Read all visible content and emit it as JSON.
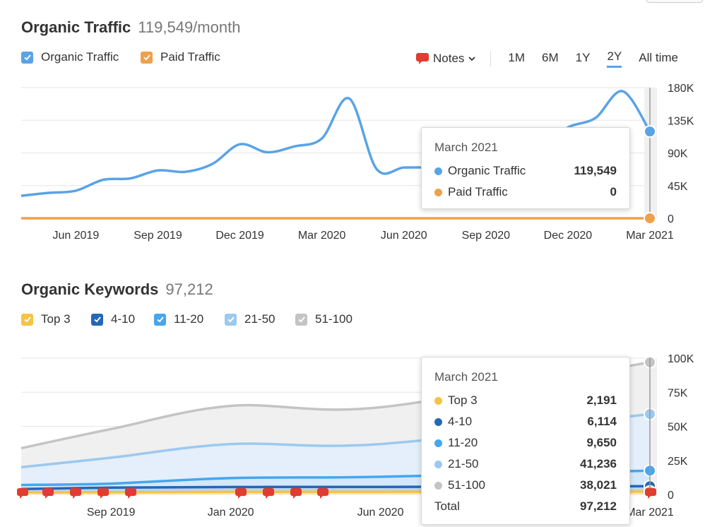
{
  "traffic": {
    "title": "Organic Traffic",
    "value": "119,549/month",
    "legend": [
      {
        "label": "Organic Traffic",
        "color": "#5aa3e6"
      },
      {
        "label": "Paid Traffic",
        "color": "#f0a04b"
      }
    ],
    "toolbar": {
      "notes_label": "Notes",
      "ranges": [
        "1M",
        "6M",
        "1Y",
        "2Y",
        "All time"
      ],
      "active_range": "2Y"
    },
    "tooltip": {
      "date": "March 2021",
      "rows": [
        {
          "label": "Organic Traffic",
          "value": "119,549",
          "color": "#5aa3e6"
        },
        {
          "label": "Paid Traffic",
          "value": "0",
          "color": "#f0a04b"
        }
      ]
    }
  },
  "keywords": {
    "title": "Organic Keywords",
    "value": "97,212",
    "legend": [
      {
        "label": "Top 3",
        "color": "#f5c443"
      },
      {
        "label": "4-10",
        "color": "#2467b8"
      },
      {
        "label": "11-20",
        "color": "#46a6ee"
      },
      {
        "label": "21-50",
        "color": "#9cc9ef"
      },
      {
        "label": "51-100",
        "color": "#c4c4c4"
      }
    ],
    "tooltip": {
      "date": "March 2021",
      "rows": [
        {
          "label": "Top 3",
          "value": "2,191",
          "color": "#f5c443"
        },
        {
          "label": "4-10",
          "value": "6,114",
          "color": "#2467b8"
        },
        {
          "label": "11-20",
          "value": "9,650",
          "color": "#46a6ee"
        },
        {
          "label": "21-50",
          "value": "41,236",
          "color": "#9cc9ef"
        },
        {
          "label": "51-100",
          "value": "38,021",
          "color": "#c4c4c4"
        }
      ],
      "total_label": "Total",
      "total_value": "97,212"
    }
  },
  "chart_data": [
    {
      "type": "line",
      "ylim": [
        0,
        180000
      ],
      "yticks": [
        "180K",
        "135K",
        "90K",
        "45K",
        "0"
      ],
      "xticks": [
        "Jun 2019",
        "Sep 2019",
        "Dec 2019",
        "Mar 2020",
        "Jun 2020",
        "Sep 2020",
        "Dec 2020",
        "Mar 2021"
      ],
      "grid": true,
      "series": [
        {
          "name": "Organic Traffic",
          "color": "#5aa3e6",
          "x": [
            "Apr 2019",
            "May 2019",
            "Jun 2019",
            "Jul 2019",
            "Aug 2019",
            "Sep 2019",
            "Oct 2019",
            "Nov 2019",
            "Dec 2019",
            "Jan 2020",
            "Feb 2020",
            "Mar 2020",
            "Apr 2020",
            "May 2020",
            "Jun 2020",
            "Jul 2020",
            "Aug 2020",
            "Sep 2020",
            "Oct 2020",
            "Nov 2020",
            "Dec 2020",
            "Jan 2021",
            "Feb 2021",
            "Mar 2021"
          ],
          "values": [
            31000,
            35000,
            38000,
            53000,
            55000,
            66000,
            64000,
            75000,
            102000,
            91000,
            99000,
            110000,
            165000,
            68000,
            70000,
            70000,
            70000,
            70000,
            72000,
            95000,
            125000,
            138000,
            175000,
            119549
          ]
        },
        {
          "name": "Paid Traffic",
          "color": "#f0a04b",
          "x": [
            "Apr 2019",
            "Mar 2021"
          ],
          "values": [
            0,
            0
          ]
        }
      ]
    },
    {
      "type": "area",
      "ylim": [
        0,
        100000
      ],
      "yticks": [
        "100K",
        "75K",
        "50K",
        "25K",
        "0"
      ],
      "xticks": [
        "Sep 2019",
        "Jan 2020",
        "Jun 2020",
        "Mar 2021"
      ],
      "grid": true,
      "series": [
        {
          "name": "Top 3",
          "color": "#f5c443",
          "x": [
            "Jun 2019",
            "Sep 2019",
            "Jan 2020",
            "Jun 2020",
            "Mar 2021"
          ],
          "values": [
            1500,
            1700,
            1900,
            2000,
            2191
          ]
        },
        {
          "name": "4-10",
          "color": "#2467b8",
          "x": [
            "Jun 2019",
            "Sep 2019",
            "Jan 2020",
            "Jun 2020",
            "Mar 2021"
          ],
          "values": [
            4000,
            5000,
            5500,
            5600,
            6114
          ]
        },
        {
          "name": "11-20",
          "color": "#46a6ee",
          "x": [
            "Jun 2019",
            "Sep 2019",
            "Jan 2020",
            "Jun 2020",
            "Mar 2021"
          ],
          "values": [
            7000,
            8000,
            12000,
            13000,
            17500
          ]
        },
        {
          "name": "21-50",
          "color": "#9cc9ef",
          "x": [
            "Jun 2019",
            "Sep 2019",
            "Jan 2020",
            "Jun 2020",
            "Mar 2021"
          ],
          "values": [
            20000,
            27000,
            37000,
            37000,
            59000
          ]
        },
        {
          "name": "51-100",
          "color": "#c4c4c4",
          "x": [
            "Jun 2019",
            "Sep 2019",
            "Jan 2020",
            "Jun 2020",
            "Mar 2021"
          ],
          "values": [
            34000,
            48000,
            65000,
            64000,
            97000
          ]
        }
      ]
    }
  ]
}
